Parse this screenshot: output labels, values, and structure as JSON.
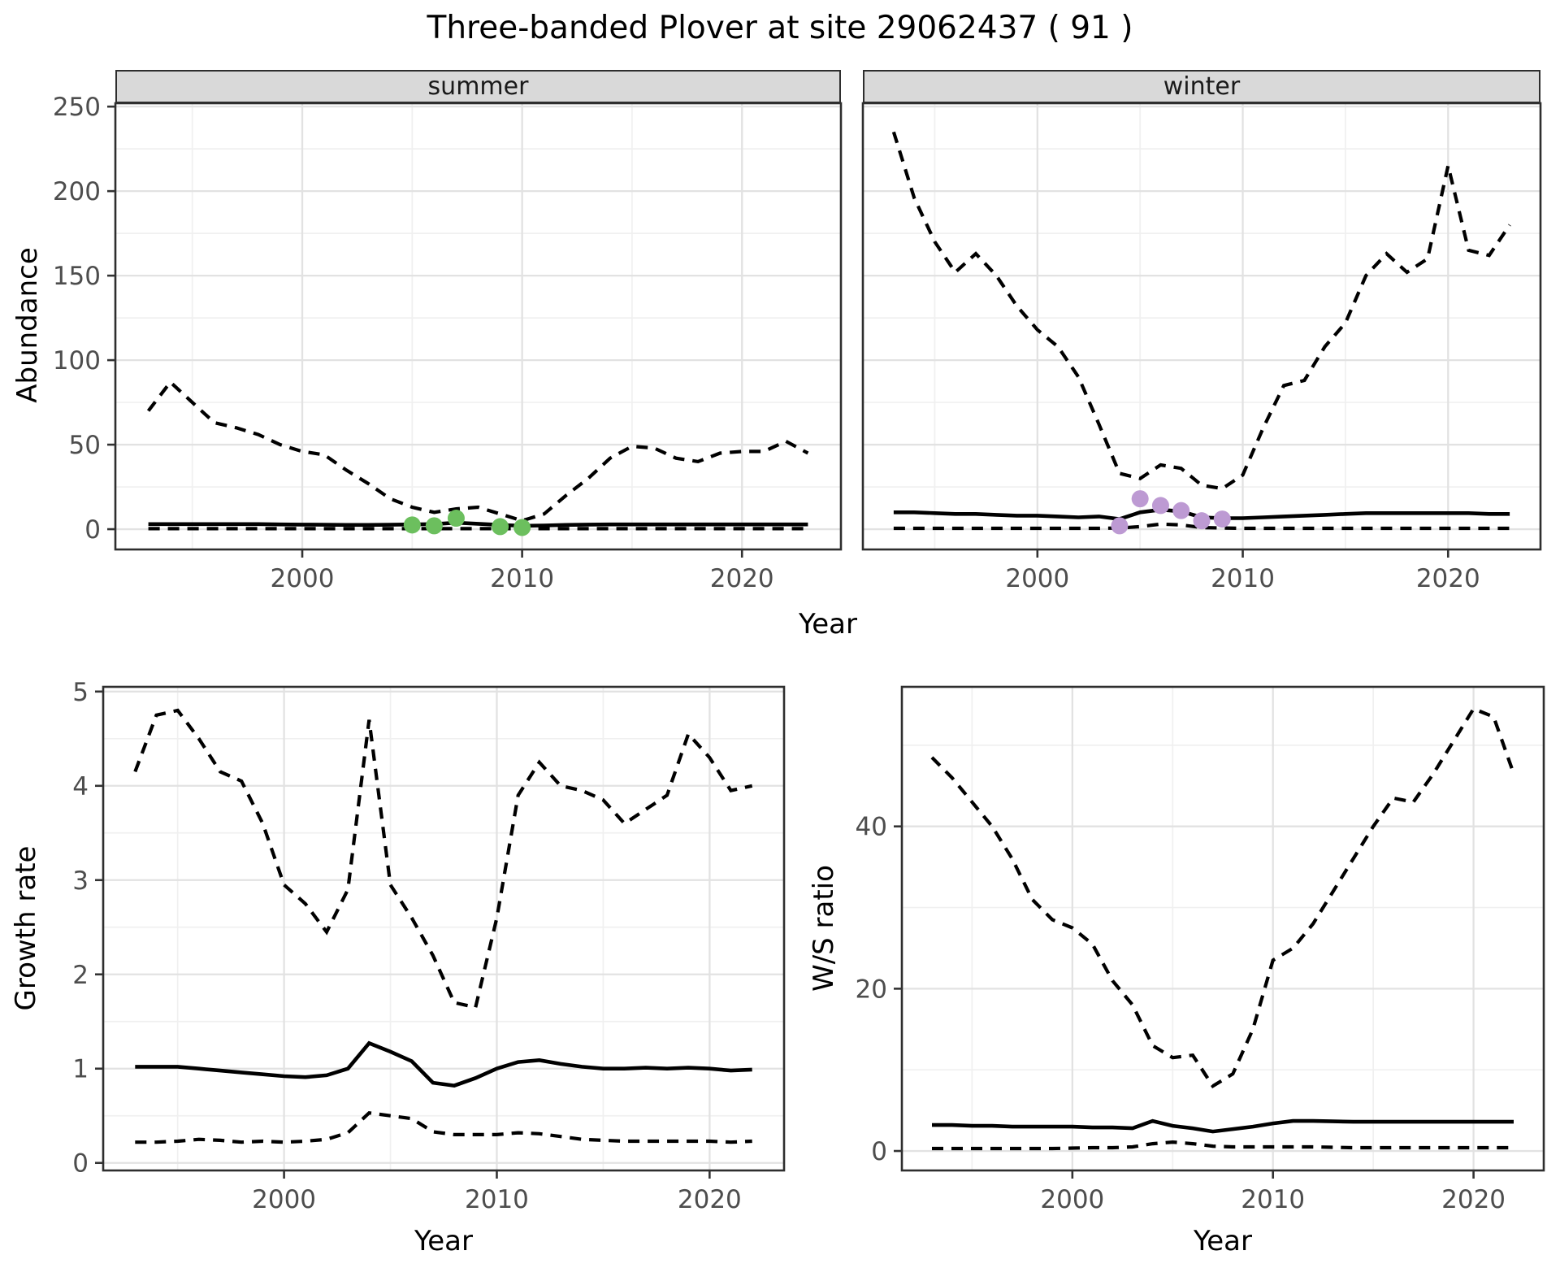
{
  "title": "Three-banded Plover at site 29062437 ( 91 )",
  "chart_data": [
    {
      "id": "summer",
      "type": "line",
      "facet_label": "summer",
      "ylabel": "Abundance",
      "xlabel": "Year",
      "x": [
        1993,
        1994,
        1995,
        1996,
        1997,
        1998,
        1999,
        2000,
        2001,
        2002,
        2003,
        2004,
        2005,
        2006,
        2007,
        2008,
        2009,
        2010,
        2011,
        2012,
        2013,
        2014,
        2015,
        2016,
        2017,
        2018,
        2019,
        2020,
        2021,
        2022,
        2023
      ],
      "series": [
        {
          "name": "upper-ci",
          "style": "dashed",
          "values": [
            70,
            87,
            75,
            63,
            60,
            56,
            50,
            46,
            44,
            35,
            27,
            18,
            13,
            10,
            12,
            13,
            9,
            5,
            9,
            20,
            30,
            42,
            49,
            48,
            42,
            40,
            45,
            46,
            46,
            52,
            45
          ]
        },
        {
          "name": "median",
          "style": "solid",
          "values": [
            3,
            3,
            3,
            3,
            3,
            3,
            2.8,
            2.7,
            2.6,
            2.5,
            2.5,
            2.6,
            2.8,
            3,
            3.8,
            3.2,
            2.5,
            2,
            2.2,
            2.5,
            2.7,
            2.8,
            2.8,
            2.8,
            2.8,
            2.8,
            2.8,
            2.8,
            2.8,
            2.8,
            2.8
          ]
        },
        {
          "name": "lower-ci",
          "style": "dashed",
          "values": [
            0.3,
            0.3,
            0.3,
            0.3,
            0.3,
            0.3,
            0.3,
            0.3,
            0.3,
            0.3,
            0.3,
            0.3,
            0.3,
            0.3,
            0.3,
            0.3,
            0.3,
            0.3,
            0.3,
            0.3,
            0.3,
            0.3,
            0.3,
            0.3,
            0.3,
            0.3,
            0.3,
            0.3,
            0.3,
            0.3,
            0.3
          ]
        }
      ],
      "observed_points": {
        "color": "#6cbf5e",
        "x": [
          2005,
          2006,
          2007,
          2009,
          2010
        ],
        "y": [
          2.5,
          2,
          6.5,
          1.5,
          1
        ]
      },
      "xlim": [
        1991.5,
        2024.5
      ],
      "ylim": [
        -12,
        252
      ],
      "xticks": [
        2000,
        2010,
        2020
      ],
      "xminor": [
        1995,
        2005,
        2015
      ],
      "yticks": [
        0,
        50,
        100,
        150,
        200,
        250
      ],
      "yminor": [
        25,
        75,
        125,
        175,
        225
      ]
    },
    {
      "id": "winter",
      "type": "line",
      "facet_label": "winter",
      "ylabel": "Abundance",
      "xlabel": "Year",
      "x": [
        1993,
        1994,
        1995,
        1996,
        1997,
        1998,
        1999,
        2000,
        2001,
        2002,
        2003,
        2004,
        2005,
        2006,
        2007,
        2008,
        2009,
        2010,
        2011,
        2012,
        2013,
        2014,
        2015,
        2016,
        2017,
        2018,
        2019,
        2020,
        2021,
        2022,
        2023
      ],
      "series": [
        {
          "name": "upper-ci",
          "style": "dashed",
          "values": [
            235,
            196,
            170,
            152,
            163,
            150,
            132,
            118,
            108,
            90,
            62,
            33,
            30,
            38,
            36,
            26,
            24,
            32,
            60,
            85,
            88,
            108,
            122,
            150,
            163,
            152,
            160,
            215,
            165,
            162,
            180
          ]
        },
        {
          "name": "median",
          "style": "solid",
          "values": [
            10,
            10,
            9.5,
            9,
            9,
            8.5,
            8,
            8,
            7.5,
            7,
            7.5,
            6,
            10,
            11.5,
            10.5,
            7,
            6.5,
            6.5,
            7,
            7.5,
            8,
            8.5,
            9,
            9.5,
            9.5,
            9.5,
            9.5,
            9.5,
            9.5,
            9,
            9
          ]
        },
        {
          "name": "lower-ci",
          "style": "dashed",
          "values": [
            0.5,
            0.5,
            0.5,
            0.5,
            0.5,
            0.5,
            0.5,
            0.5,
            0.5,
            0.5,
            0.5,
            0.7,
            1.5,
            3,
            2.5,
            1,
            0.7,
            0.5,
            0.5,
            0.5,
            0.5,
            0.5,
            0.5,
            0.5,
            0.5,
            0.5,
            0.5,
            0.5,
            0.5,
            0.5,
            0.5
          ]
        }
      ],
      "observed_points": {
        "color": "#bd9ad3",
        "x": [
          2004,
          2005,
          2006,
          2007,
          2008,
          2009
        ],
        "y": [
          2,
          18,
          14,
          11,
          5,
          6
        ]
      },
      "xlim": [
        1991.5,
        2024.5
      ],
      "ylim": [
        -12,
        252
      ],
      "xticks": [
        2000,
        2010,
        2020
      ],
      "xminor": [
        1995,
        2005,
        2015
      ],
      "yticks": [
        0,
        50,
        100,
        150,
        200,
        250
      ],
      "yminor": [
        25,
        75,
        125,
        175,
        225
      ]
    },
    {
      "id": "growth",
      "type": "line",
      "ylabel": "Growth rate",
      "xlabel": "Year",
      "x": [
        1993,
        1994,
        1995,
        1996,
        1997,
        1998,
        1999,
        2000,
        2001,
        2002,
        2003,
        2004,
        2005,
        2006,
        2007,
        2008,
        2009,
        2010,
        2011,
        2012,
        2013,
        2014,
        2015,
        2016,
        2017,
        2018,
        2019,
        2020,
        2021,
        2022
      ],
      "series": [
        {
          "name": "upper-ci",
          "style": "dashed",
          "values": [
            4.15,
            4.75,
            4.8,
            4.5,
            4.15,
            4.05,
            3.6,
            2.95,
            2.75,
            2.45,
            2.9,
            4.7,
            2.95,
            2.6,
            2.2,
            1.7,
            1.65,
            2.6,
            3.9,
            4.25,
            4.0,
            3.95,
            3.85,
            3.6,
            3.75,
            3.9,
            4.55,
            4.3,
            3.95,
            4.0
          ]
        },
        {
          "name": "median",
          "style": "solid",
          "values": [
            1.02,
            1.02,
            1.02,
            1.0,
            0.98,
            0.96,
            0.94,
            0.92,
            0.91,
            0.93,
            1.0,
            1.27,
            1.18,
            1.08,
            0.85,
            0.82,
            0.9,
            1.0,
            1.07,
            1.09,
            1.05,
            1.02,
            1.0,
            1.0,
            1.01,
            1.0,
            1.01,
            1.0,
            0.98,
            0.99
          ]
        },
        {
          "name": "lower-ci",
          "style": "dashed",
          "values": [
            0.22,
            0.22,
            0.23,
            0.25,
            0.24,
            0.22,
            0.23,
            0.22,
            0.23,
            0.25,
            0.32,
            0.53,
            0.5,
            0.47,
            0.33,
            0.3,
            0.3,
            0.3,
            0.32,
            0.31,
            0.28,
            0.25,
            0.24,
            0.23,
            0.23,
            0.23,
            0.23,
            0.23,
            0.22,
            0.23
          ]
        }
      ],
      "xlim": [
        1991.5,
        2023.5
      ],
      "ylim": [
        -0.08,
        5.05
      ],
      "xticks": [
        2000,
        2010,
        2020
      ],
      "xminor": [
        1995,
        2005,
        2015
      ],
      "yticks": [
        0,
        1,
        2,
        3,
        4,
        5
      ],
      "yminor": [
        0.5,
        1.5,
        2.5,
        3.5,
        4.5
      ]
    },
    {
      "id": "ws",
      "type": "line",
      "ylabel": "W/S ratio",
      "xlabel": "Year",
      "x": [
        1993,
        1994,
        1995,
        1996,
        1997,
        1998,
        1999,
        2000,
        2001,
        2002,
        2003,
        2004,
        2005,
        2006,
        2007,
        2008,
        2009,
        2010,
        2011,
        2012,
        2013,
        2014,
        2015,
        2016,
        2017,
        2018,
        2019,
        2020,
        2021,
        2022
      ],
      "series": [
        {
          "name": "upper-ci",
          "style": "dashed",
          "values": [
            48.5,
            46,
            43,
            40,
            36,
            31,
            28.5,
            27.5,
            25.5,
            21,
            18,
            13,
            11.5,
            11.8,
            8,
            9.5,
            15,
            23.5,
            25,
            28,
            32,
            36,
            40,
            43.5,
            43,
            46.5,
            50.5,
            54.5,
            53.5,
            46.5
          ]
        },
        {
          "name": "median",
          "style": "solid",
          "values": [
            3.2,
            3.2,
            3.1,
            3.1,
            3.0,
            3.0,
            3.0,
            3.0,
            2.9,
            2.9,
            2.8,
            3.7,
            3.1,
            2.8,
            2.4,
            2.7,
            3.0,
            3.4,
            3.7,
            3.7,
            3.65,
            3.6,
            3.6,
            3.6,
            3.6,
            3.6,
            3.6,
            3.6,
            3.6,
            3.6
          ]
        },
        {
          "name": "lower-ci",
          "style": "dashed",
          "values": [
            0.3,
            0.3,
            0.3,
            0.3,
            0.3,
            0.3,
            0.3,
            0.35,
            0.4,
            0.4,
            0.5,
            0.9,
            1.1,
            0.9,
            0.6,
            0.5,
            0.5,
            0.5,
            0.5,
            0.5,
            0.45,
            0.4,
            0.4,
            0.4,
            0.4,
            0.4,
            0.4,
            0.4,
            0.4,
            0.4
          ]
        }
      ],
      "xlim": [
        1991.5,
        2023.5
      ],
      "ylim": [
        -2.4,
        57.2
      ],
      "xticks": [
        2000,
        2010,
        2020
      ],
      "xminor": [
        1995,
        2005,
        2015
      ],
      "yticks": [
        0,
        20,
        40
      ],
      "yminor": [
        10,
        30,
        50
      ]
    }
  ]
}
